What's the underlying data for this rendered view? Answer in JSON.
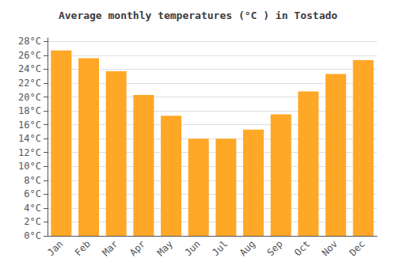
{
  "chart_data": {
    "type": "bar",
    "title": "Average monthly temperatures (°C ) in Tostado",
    "categories": [
      "Jan",
      "Feb",
      "Mar",
      "Apr",
      "May",
      "Jun",
      "Jul",
      "Aug",
      "Sep",
      "Oct",
      "Nov",
      "Dec"
    ],
    "values": [
      26.7,
      25.6,
      23.7,
      20.3,
      17.3,
      14.0,
      14.0,
      15.3,
      17.5,
      20.8,
      23.3,
      25.3
    ],
    "color": "#FFA726",
    "ylim": [
      0,
      28.5
    ],
    "yticks": [
      {
        "value": 0,
        "label": "0°C"
      },
      {
        "value": 2,
        "label": "2°C"
      },
      {
        "value": 4,
        "label": "4°C"
      },
      {
        "value": 6,
        "label": "6°C"
      },
      {
        "value": 8,
        "label": "8°C"
      },
      {
        "value": 10,
        "label": "10°C"
      },
      {
        "value": 12,
        "label": "12°C"
      },
      {
        "value": 14,
        "label": "14°C"
      },
      {
        "value": 16,
        "label": "16°C"
      },
      {
        "value": 18,
        "label": "18°C"
      },
      {
        "value": 20,
        "label": "20°C"
      },
      {
        "value": 22,
        "label": "22°C"
      },
      {
        "value": 24,
        "label": "24°C"
      },
      {
        "value": 26,
        "label": "26°C"
      },
      {
        "value": 28,
        "label": "28°C"
      }
    ],
    "grid": true
  }
}
